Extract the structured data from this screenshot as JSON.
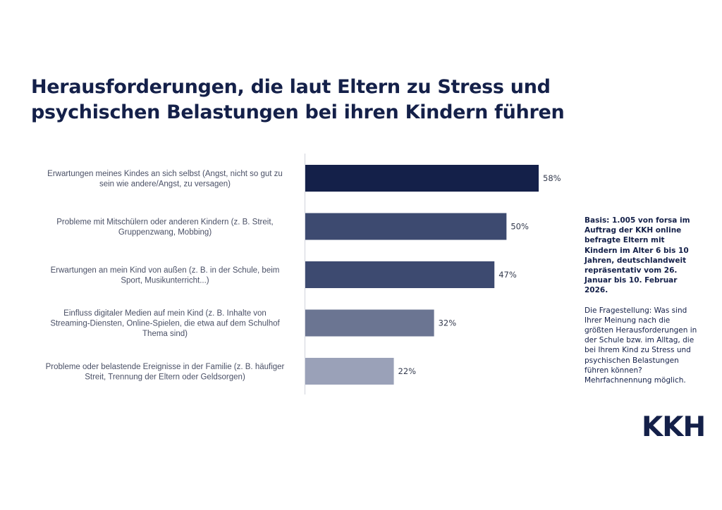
{
  "title": {
    "line1": "Herausforderungen, die laut Eltern zu Stress und",
    "line2": "psychischen Belastungen bei ihren Kindern führen"
  },
  "sidebar": {
    "basis": "Basis: 1.005 von forsa im Auftrag der KKH online befragte Eltern mit Kindern im Alter 6 bis 10 Jahren, deutschlandweit repräsentativ vom 26. Januar bis 10. Februar 2026.",
    "question": "Die Fragestellung: Was sind Ihrer Meinung nach die größten Herausforderungen in der Schule bzw. im Alltag, die bei Ihrem Kind zu Stress und psychischen Belastungen führen können? Mehrfachnennung möglich."
  },
  "logo": {
    "text": "KKH"
  },
  "chart_data": {
    "type": "bar",
    "orientation": "horizontal",
    "categories": [
      [
        "Erwartungen meines Kindes an sich selbst (Angst, nicht so gut zu",
        "sein wie andere/Angst, zu versagen)"
      ],
      [
        "Probleme mit Mitschülern oder anderen Kindern (z. B. Streit,",
        "Gruppenzwang, Mobbing)"
      ],
      [
        "Erwartungen an mein Kind von außen (z. B. in der Schule, beim",
        "Sport, Musikunterricht...)"
      ],
      [
        "Einfluss digitaler Medien auf mein Kind (z. B. Inhalte von",
        "Streaming-Diensten, Online-Spielen, die etwa auf dem Schulhof",
        "Thema sind)"
      ],
      [
        "Probleme oder belastende Ereignisse in der Familie (z. B. häufiger",
        "Streit,  Trennung der Eltern oder Geldsorgen)"
      ]
    ],
    "values": [
      58,
      50,
      47,
      32,
      22
    ],
    "value_labels": [
      "58%",
      "50%",
      "47%",
      "32%",
      "22%"
    ],
    "unit": "%",
    "colors": [
      "#142049",
      "#3d4a70",
      "#3d4a70",
      "#6b7592",
      "#9aa1b8"
    ],
    "xlim": [
      0,
      58
    ],
    "grid": false,
    "legend": "none"
  }
}
